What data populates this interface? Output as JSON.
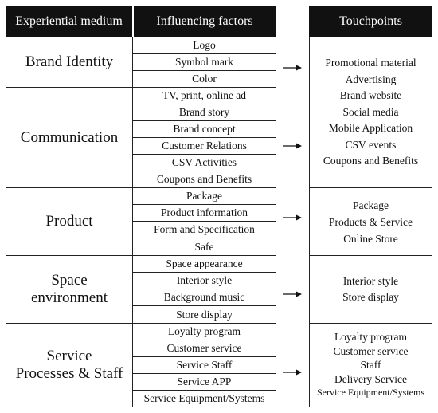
{
  "headers": {
    "medium": "Experiential medium",
    "factors": "Influencing factors",
    "touchpoints": "Touchpoints"
  },
  "groups": [
    {
      "medium": "Brand Identity",
      "factors": [
        "Logo",
        "Symbol mark",
        "Color"
      ],
      "touchpoints": [
        "Promotional material",
        "Advertising",
        "Brand website",
        "Social media",
        "Mobile Application",
        "CSV events",
        "Coupons and Benefits"
      ]
    },
    {
      "medium": "Communication",
      "factors": [
        "TV, print, online ad",
        "Brand story",
        "Brand concept",
        "Customer Relations",
        "CSV Activities",
        "Coupons and Benefits"
      ]
    },
    {
      "medium": "Product",
      "factors": [
        "Package",
        "Product information",
        "Form and Specification",
        "Safe"
      ],
      "touchpoints": [
        "Package",
        "Products & Service",
        "Online Store"
      ]
    },
    {
      "medium_lines": [
        "Space",
        "environment"
      ],
      "factors": [
        "Space appearance",
        "Interior style",
        "Background music",
        "Store display"
      ],
      "touchpoints": [
        "Interior style",
        "Store display"
      ]
    },
    {
      "medium_lines": [
        "Service",
        "Processes & Staff"
      ],
      "factors": [
        "Loyalty program",
        "Customer service",
        "Service Staff",
        "Service APP",
        "Service Equipment/Systems"
      ],
      "touchpoints": [
        "Loyalty program",
        "Customer service",
        "Staff",
        "Delivery Service",
        "Service Equipment/Systems"
      ]
    }
  ]
}
